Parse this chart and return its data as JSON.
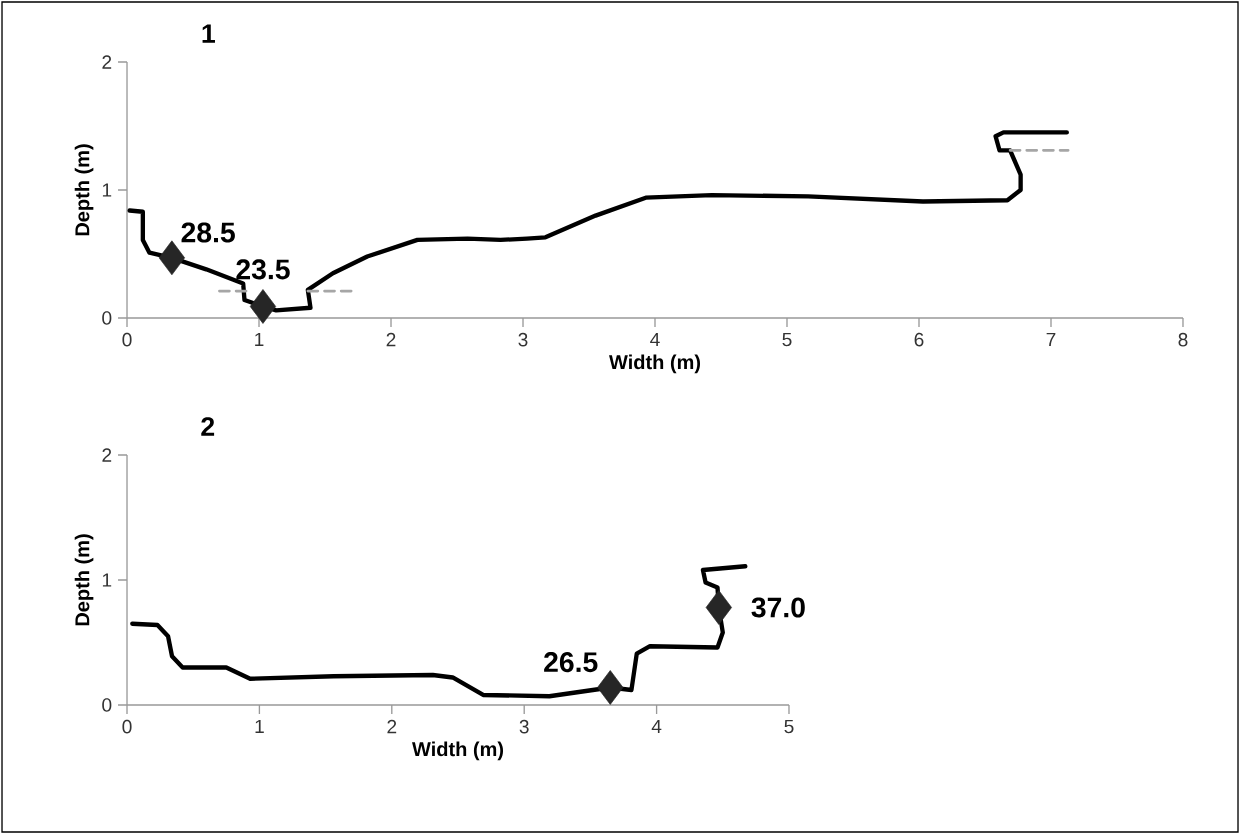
{
  "chart_data": [
    {
      "type": "line",
      "title": "1",
      "xlabel": "Width (m)",
      "ylabel": "Depth (m)",
      "xlim": [
        0,
        8
      ],
      "ylim": [
        0,
        2
      ],
      "xticks": [
        0,
        1,
        2,
        3,
        4,
        5,
        6,
        7,
        8
      ],
      "yticks": [
        0,
        1,
        2
      ],
      "series": [
        {
          "color": "#000000",
          "x": [
            0.02,
            0.12,
            0.12,
            0.17,
            0.34,
            0.6,
            0.88,
            0.89,
            1.03,
            1.13,
            1.39,
            1.37,
            1.56,
            1.82,
            2.2,
            2.58,
            2.83,
            3.03,
            3.17,
            3.55,
            3.93,
            4.43,
            5.16,
            6.03,
            6.67,
            6.77,
            6.77,
            6.69,
            6.61,
            6.58,
            6.64,
            7.12
          ],
          "values": [
            0.84,
            0.83,
            0.61,
            0.51,
            0.47,
            0.38,
            0.27,
            0.14,
            0.09,
            0.06,
            0.08,
            0.22,
            0.35,
            0.48,
            0.61,
            0.62,
            0.61,
            0.62,
            0.63,
            0.8,
            0.94,
            0.96,
            0.95,
            0.91,
            0.92,
            1.0,
            1.12,
            1.31,
            1.31,
            1.42,
            1.45,
            1.45
          ]
        },
        {
          "type": "line",
          "line_style": "dashed",
          "color": "#a6a6a6",
          "x": [
            0.7,
            0.91
          ],
          "values": [
            0.21,
            0.21
          ]
        },
        {
          "type": "line",
          "line_style": "dashed",
          "color": "#a6a6a6",
          "x": [
            1.37,
            1.71
          ],
          "values": [
            0.21,
            0.21
          ]
        },
        {
          "type": "line",
          "line_style": "dashed",
          "color": "#a6a6a6",
          "x": [
            6.69,
            7.13
          ],
          "values": [
            1.31,
            1.31
          ]
        },
        {
          "type": "scatter",
          "marker": "diamond",
          "color": "#262626",
          "x": [
            0.34,
            1.03
          ],
          "values": [
            0.47,
            0.09
          ]
        }
      ],
      "annotations": [
        {
          "text": "28.5",
          "x": 0.34,
          "y": 0.47
        },
        {
          "text": "23.5",
          "x": 1.03,
          "y": 0.09
        }
      ]
    },
    {
      "type": "line",
      "title": "2",
      "xlabel": "Width (m)",
      "ylabel": "Depth (m)",
      "xlim": [
        0,
        5
      ],
      "ylim": [
        0,
        2
      ],
      "xticks": [
        0,
        1,
        2,
        3,
        4,
        5
      ],
      "yticks": [
        0,
        1,
        2
      ],
      "series": [
        {
          "color": "#000000",
          "x": [
            0.04,
            0.23,
            0.31,
            0.34,
            0.42,
            0.75,
            0.93,
            1.56,
            2.31,
            2.46,
            2.69,
            3.19,
            3.65,
            3.81,
            3.85,
            3.95,
            4.46,
            4.5,
            4.47,
            4.46,
            4.37,
            4.35,
            4.67
          ],
          "values": [
            0.65,
            0.64,
            0.55,
            0.39,
            0.3,
            0.3,
            0.21,
            0.23,
            0.24,
            0.22,
            0.08,
            0.07,
            0.14,
            0.12,
            0.41,
            0.47,
            0.46,
            0.58,
            0.78,
            0.94,
            0.98,
            1.08,
            1.11
          ]
        },
        {
          "type": "scatter",
          "marker": "diamond",
          "color": "#262626",
          "x": [
            3.65,
            4.47
          ],
          "values": [
            0.14,
            0.78
          ]
        }
      ],
      "annotations": [
        {
          "text": "26.5",
          "x": 3.65,
          "y": 0.14
        },
        {
          "text": "37.0",
          "x": 4.47,
          "y": 0.78
        }
      ]
    }
  ]
}
